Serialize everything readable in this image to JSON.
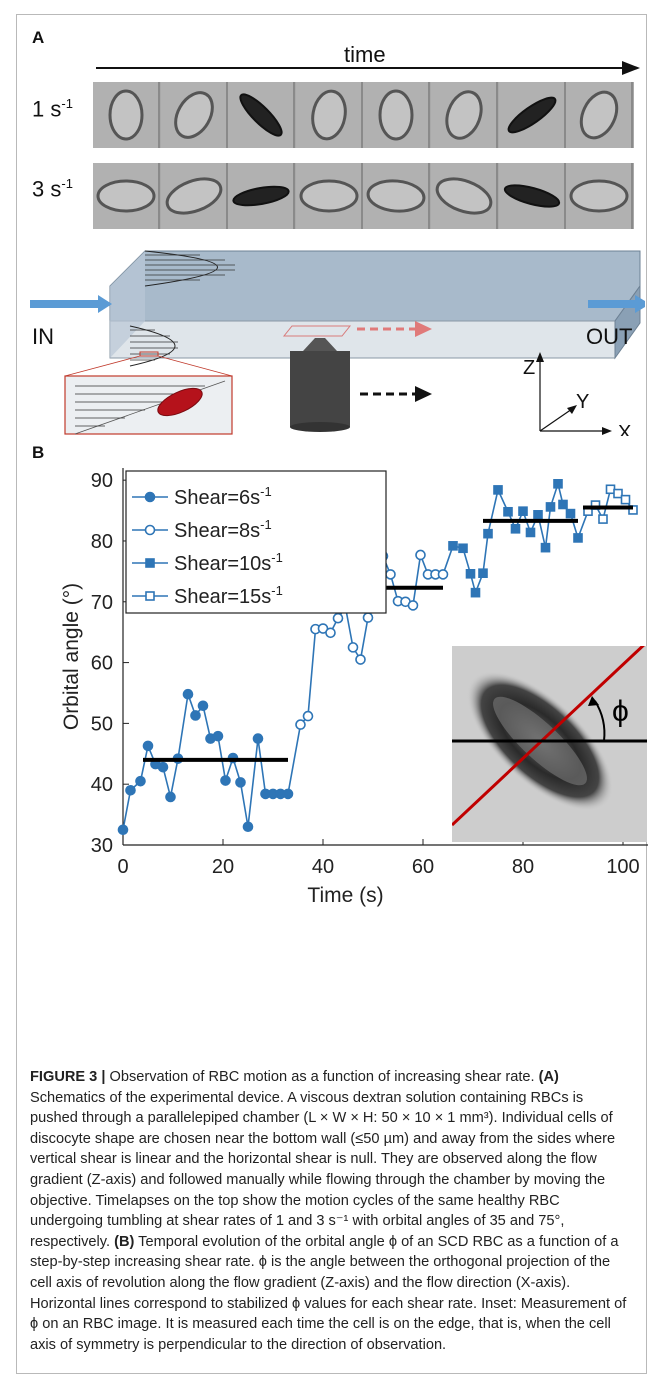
{
  "panel_a": {
    "label": "A",
    "time_label": "time",
    "rows": [
      {
        "label_base": "1 s",
        "label_exp": "-1",
        "orientations": [
          0,
          30,
          -45,
          10,
          0,
          20,
          55,
          25
        ]
      },
      {
        "label_base": "3 s",
        "label_exp": "-1",
        "orientations": [
          0,
          -20,
          -10,
          0,
          5,
          20,
          15,
          0
        ]
      }
    ],
    "schematic": {
      "in_label": "IN",
      "out_label": "OUT",
      "axis_z": "Z",
      "axis_y": "Y",
      "axis_x": "X"
    }
  },
  "panel_b": {
    "label": "B",
    "inset_symbol": "ϕ"
  },
  "chart_data": {
    "type": "line",
    "xlabel": "Time (s)",
    "ylabel": "Orbital angle (°)",
    "xlim": [
      0,
      105
    ],
    "ylim": [
      30,
      92
    ],
    "xticks": [
      "0",
      "20",
      "40",
      "60",
      "80",
      "100"
    ],
    "yticks": [
      "30",
      "40",
      "50",
      "60",
      "70",
      "80",
      "90"
    ],
    "grid": false,
    "legend_position": "top-left",
    "series": [
      {
        "name": "Shear=6s",
        "name_exp": "-1",
        "marker": "circle-filled",
        "x": [
          0,
          1.5,
          3.5,
          5,
          6.5,
          8,
          9.5,
          11,
          13,
          14.5,
          16,
          17.5,
          19,
          20.5,
          22,
          23.5,
          25,
          27,
          28.5,
          30,
          31.5,
          33
        ],
        "y": [
          32.5,
          39,
          40.5,
          46.3,
          43.3,
          42.8,
          37.9,
          44.2,
          54.8,
          51.3,
          52.9,
          47.5,
          47.9,
          40.6,
          44.3,
          40.3,
          33,
          47.5,
          38.4,
          38.4,
          38.4,
          38.4
        ]
      },
      {
        "name": "Shear=8s",
        "name_exp": "-1",
        "marker": "circle-open",
        "x": [
          35.5,
          37,
          38.5,
          40,
          41.5,
          43,
          44.5,
          46,
          47.5,
          49,
          50.5,
          52,
          53.5,
          55,
          56.5,
          58,
          59.5,
          61,
          62.5,
          64
        ],
        "y": [
          49.8,
          51.2,
          65.5,
          65.6,
          64.9,
          67.3,
          69.1,
          62.5,
          60.5,
          67.4,
          72.3,
          77.5,
          74.5,
          70.1,
          70.0,
          69.4,
          77.7,
          74.5,
          74.5,
          74.5
        ]
      },
      {
        "name": "Shear=10s",
        "name_exp": "-1",
        "marker": "square-filled",
        "x": [
          66,
          68,
          69.5,
          70.5,
          72,
          73,
          75,
          77,
          78.5,
          80,
          81.5,
          83,
          84.5,
          85.5,
          87,
          88,
          89.5,
          91
        ],
        "y": [
          79.2,
          78.8,
          74.6,
          71.5,
          74.7,
          81.2,
          88.4,
          84.8,
          82.0,
          84.9,
          81.4,
          84.3,
          78.9,
          85.6,
          89.4,
          86.0,
          84.5,
          80.5
        ]
      },
      {
        "name": "Shear=15s",
        "name_exp": "-1",
        "marker": "square-open",
        "x": [
          93,
          94.5,
          96,
          97.5,
          99,
          100.5,
          102
        ],
        "y": [
          84.9,
          85.9,
          83.6,
          88.5,
          87.8,
          86.8,
          85.1
        ]
      }
    ],
    "plateaus": [
      {
        "x": [
          4,
          33
        ],
        "y": 44
      },
      {
        "x": [
          49,
          64
        ],
        "y": 72.3
      },
      {
        "x": [
          72,
          91
        ],
        "y": 83.3
      },
      {
        "x": [
          92,
          102
        ],
        "y": 85.5
      }
    ]
  },
  "caption": {
    "figure_label": "FIGURE 3 |",
    "title": "Observation of RBC motion as a function of increasing shear rate.",
    "a_label": "(A)",
    "a_text": "Schematics of the experimental device. A viscous dextran solution containing RBCs is pushed through a parallelepiped chamber (L × W × H: 50 × 10 × 1 mm³). Individual cells of discocyte shape are chosen near the bottom wall (≤50 µm) and away from the sides where vertical shear is linear and the horizontal shear is null. They are observed along the flow gradient (Z-axis) and followed manually while flowing through the chamber by moving the objective. Timelapses on the top show the motion cycles of the same healthy RBC undergoing tumbling at shear rates of 1 and 3 s⁻¹ with orbital angles of 35 and 75°, respectively.",
    "b_label": "(B)",
    "b_text": "Temporal evolution of the orbital angle ϕ of an SCD RBC as a function of a step-by-step increasing shear rate. ϕ is the angle between the orthogonal projection of the cell axis of revolution along the flow gradient (Z-axis) and the flow direction (X-axis). Horizontal lines correspond to stabilized ϕ values for each shear rate. Inset: Measurement of ϕ on an RBC image. It is measured each time the cell is on the edge, that is, when the cell axis of symmetry is perpendicular to the direction of observation."
  }
}
